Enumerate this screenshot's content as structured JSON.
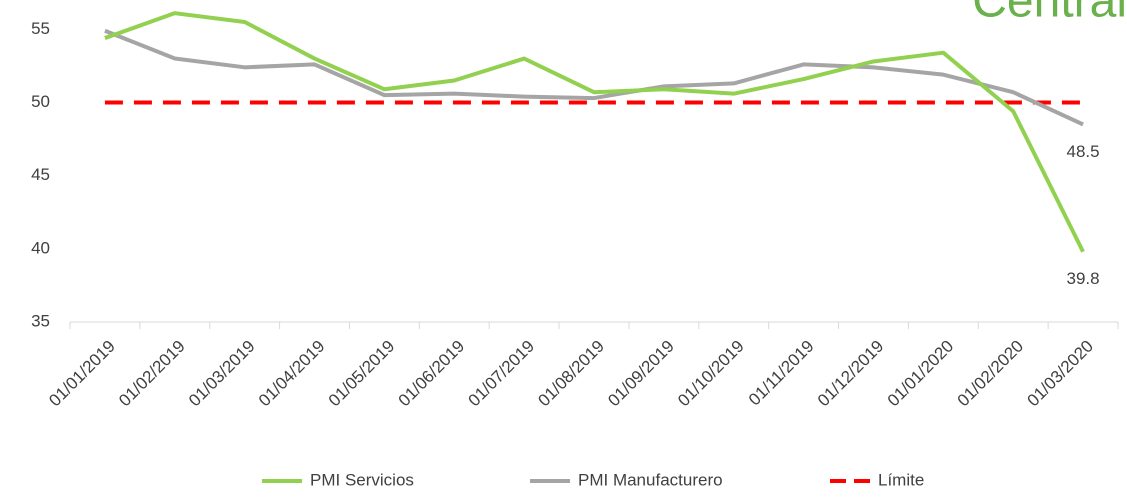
{
  "chart_data": {
    "type": "line",
    "watermark": "Central",
    "categories": [
      "01/01/2019",
      "01/02/2019",
      "01/03/2019",
      "01/04/2019",
      "01/05/2019",
      "01/06/2019",
      "01/07/2019",
      "01/08/2019",
      "01/09/2019",
      "01/10/2019",
      "01/11/2019",
      "01/12/2019",
      "01/01/2020",
      "01/02/2020",
      "01/03/2020"
    ],
    "series": [
      {
        "name": "PMI Servicios",
        "color": "#92d050",
        "dashed": false,
        "label_last": true,
        "values": [
          54.4,
          56.1,
          55.5,
          53.0,
          50.9,
          51.5,
          53.0,
          50.7,
          50.9,
          50.6,
          51.6,
          52.8,
          53.4,
          49.4,
          39.8
        ]
      },
      {
        "name": "PMI Manufacturero",
        "color": "#a5a5a5",
        "dashed": false,
        "label_last": true,
        "values": [
          54.9,
          53.0,
          52.4,
          52.6,
          50.5,
          50.6,
          50.4,
          50.3,
          51.1,
          51.3,
          52.6,
          52.4,
          51.9,
          50.7,
          48.5
        ]
      },
      {
        "name": "Límite",
        "color": "#ff0000",
        "dashed": true,
        "label_last": false,
        "values": [
          50,
          50,
          50,
          50,
          50,
          50,
          50,
          50,
          50,
          50,
          50,
          50,
          50,
          50,
          50
        ]
      }
    ],
    "ylim": [
      35,
      57
    ],
    "yticks": [
      35,
      40,
      45,
      50,
      55
    ],
    "grid": false,
    "legend": "bottom"
  }
}
